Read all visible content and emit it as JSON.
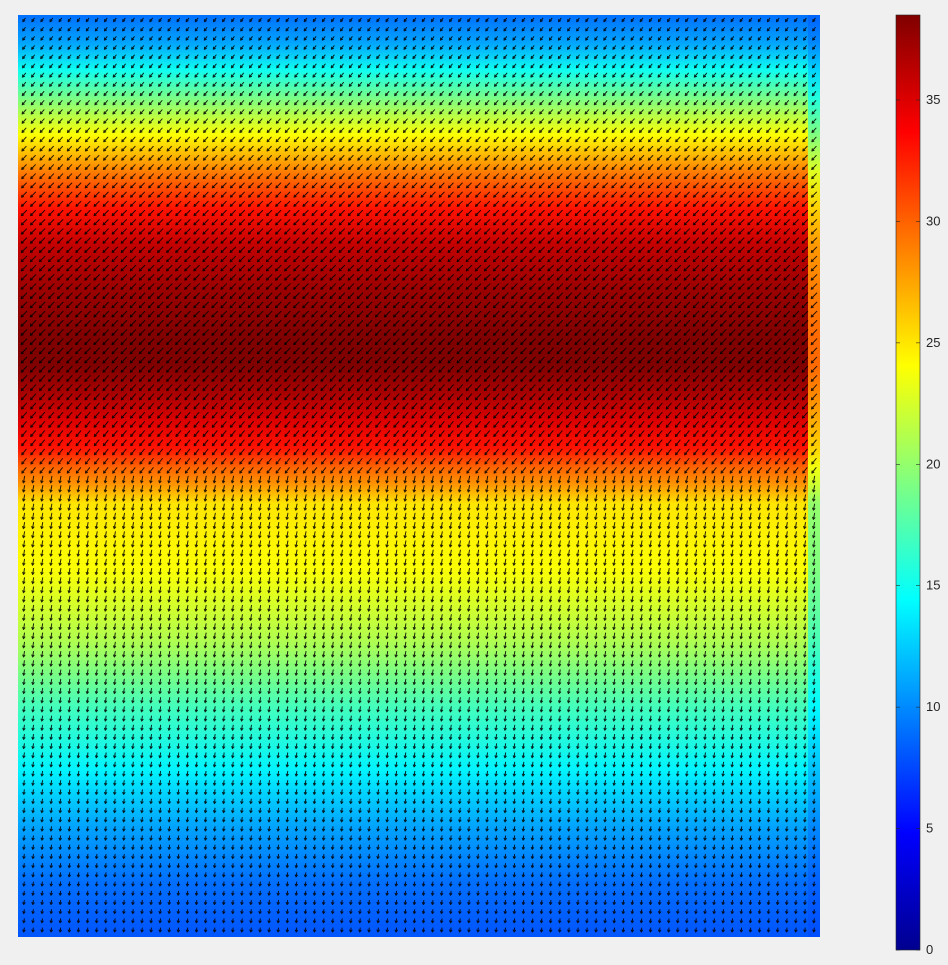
{
  "chart_data": {
    "type": "heatmap",
    "title": "",
    "xlabel": "",
    "ylabel": "",
    "axes_visible": false,
    "overlay": "quiver",
    "quiver_color": "#000000",
    "colormap": "jet",
    "colormap_stops": [
      "#00008f",
      "#0000ff",
      "#0080ff",
      "#00ffff",
      "#80ff80",
      "#ffff00",
      "#ff8000",
      "#ff0000",
      "#800000"
    ],
    "clim": [
      0,
      38.5
    ],
    "colorbar": {
      "location": "right",
      "ticks": [
        0,
        5,
        10,
        15,
        20,
        25,
        30,
        35
      ],
      "tick_labels": [
        "0",
        "5",
        "10",
        "15",
        "20",
        "25",
        "30",
        "35"
      ]
    },
    "magnitude_profile": {
      "description_axis": "row position from top (0) to bottom (1)",
      "y": [
        0.0,
        0.03,
        0.06,
        0.09,
        0.13,
        0.17,
        0.21,
        0.25,
        0.3,
        0.35,
        0.38,
        0.41,
        0.44,
        0.47,
        0.49,
        0.51,
        0.53,
        0.6,
        0.68,
        0.75,
        0.82,
        0.88,
        0.94,
        1.0
      ],
      "values": [
        9,
        11,
        15,
        19,
        24,
        29,
        33,
        36,
        37.5,
        38.5,
        38.5,
        37,
        35,
        33,
        30,
        28,
        25,
        24,
        21,
        17,
        14,
        11,
        9,
        8
      ]
    },
    "vector_direction": {
      "upper_region": "diagonal, pointing lower-left",
      "lower_region": "nearly vertical, pointing down"
    }
  }
}
